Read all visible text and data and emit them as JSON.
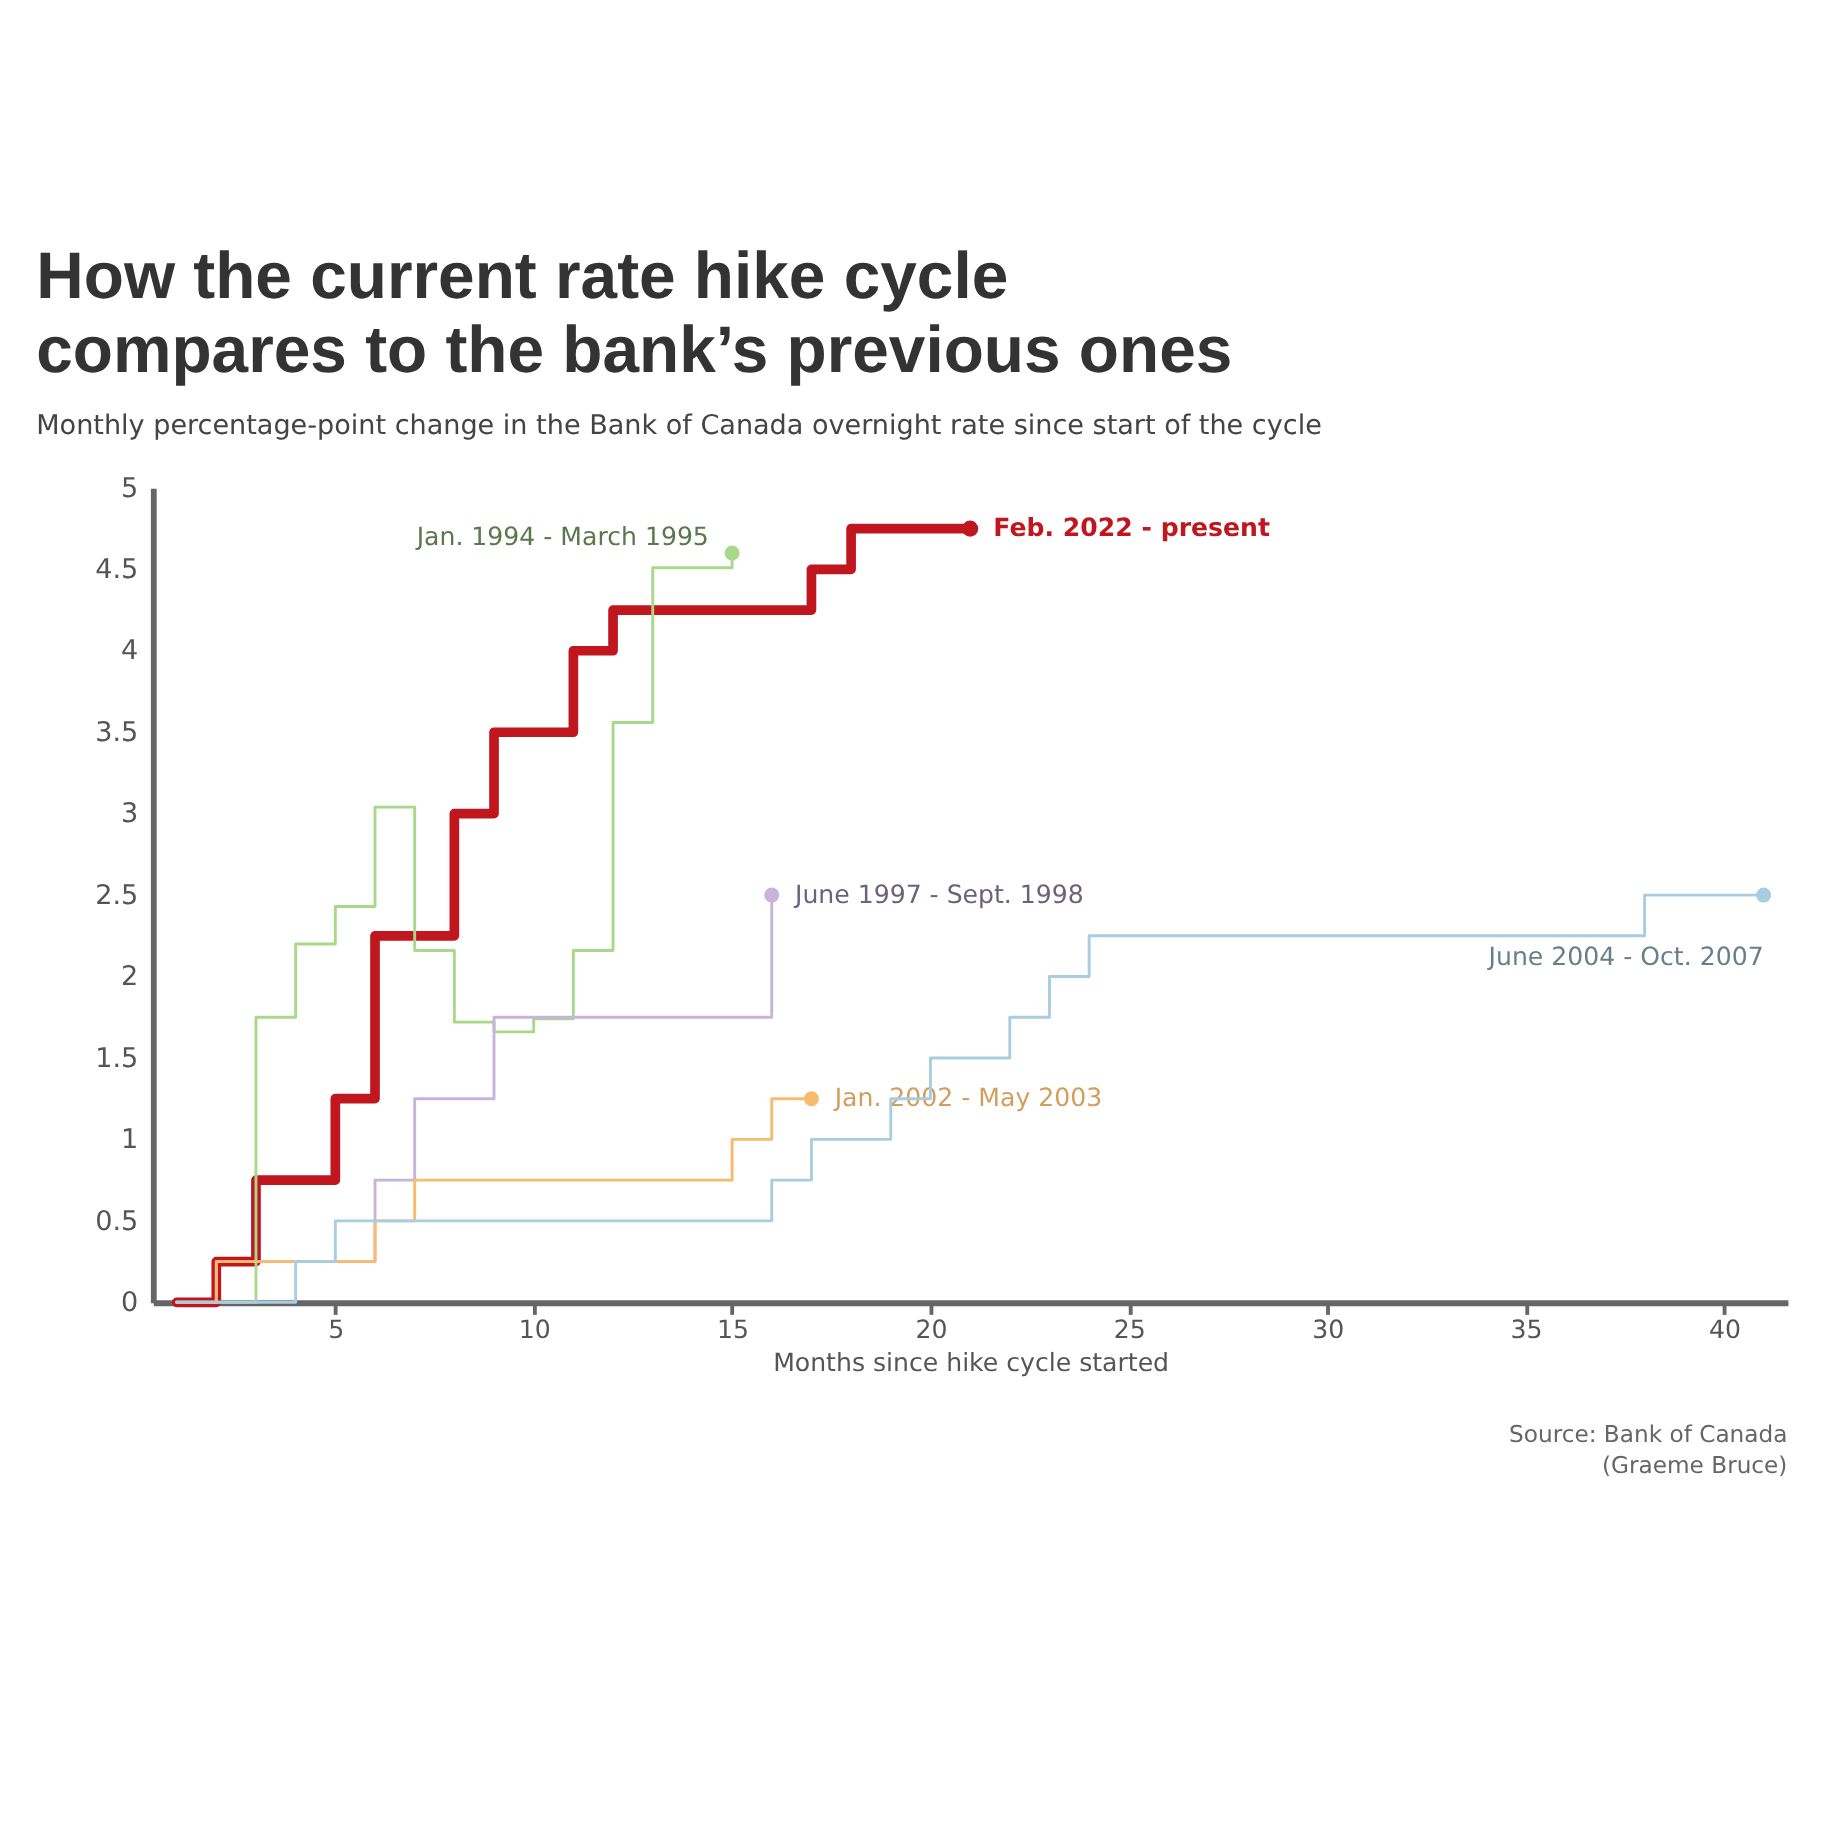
{
  "chart_data": {
    "type": "step",
    "title": [
      "How the current rate hike cycle",
      "compares to the bank’s previous ones"
    ],
    "subtitle": "Monthly percentage-point change in the Bank of Canada overnight rate since start of the cycle",
    "xlabel": "Months since hike cycle started",
    "xlim": [
      0.4,
      41.6
    ],
    "xticks": [
      5,
      10,
      15,
      20,
      25,
      30,
      35,
      40
    ],
    "ylim": [
      0,
      5
    ],
    "yticks": [
      0,
      0.5,
      1,
      1.5,
      2,
      2.5,
      3,
      3.5,
      4,
      4.5,
      5
    ],
    "grid": false,
    "series": [
      {
        "name": "Feb. 2022 - present",
        "color": "#c0161e",
        "x": [
          1,
          2,
          3,
          4,
          5,
          6,
          7,
          8,
          9,
          10,
          11,
          12,
          13,
          14,
          15,
          16,
          17,
          18,
          19,
          20,
          21
        ],
        "values": [
          0,
          0.25,
          0.75,
          0.75,
          1.25,
          2.25,
          2.25,
          3,
          3.5,
          3.5,
          4,
          4.25,
          4.25,
          4.25,
          4.25,
          4.25,
          4.5,
          4.75,
          4.75,
          4.75,
          4.75
        ]
      },
      {
        "name": "Jan. 1994 - March 1995",
        "color": "#a8d98a",
        "x": [
          1,
          2,
          3,
          4,
          5,
          6,
          7,
          8,
          9,
          10,
          11,
          12,
          13,
          14,
          15
        ],
        "values": [
          0,
          0,
          1.75,
          2.2,
          2.43,
          3.04,
          2.16,
          1.72,
          1.66,
          1.74,
          2.16,
          3.56,
          4.51,
          4.51,
          4.6
        ]
      },
      {
        "name": "June 1997 - Sept. 1998",
        "color": "#c7b3dc",
        "x": [
          1,
          2,
          3,
          4,
          5,
          6,
          7,
          8,
          9,
          10,
          11,
          12,
          13,
          14,
          15,
          16
        ],
        "values": [
          0,
          0.25,
          0.25,
          0.25,
          0.25,
          0.75,
          1.25,
          1.25,
          1.75,
          1.75,
          1.75,
          1.75,
          1.75,
          1.75,
          1.75,
          2.5
        ]
      },
      {
        "name": "Jan. 2002 - May 2003",
        "color": "#f8bb6e",
        "x": [
          1,
          2,
          3,
          4,
          5,
          6,
          7,
          8,
          9,
          10,
          11,
          12,
          13,
          14,
          15,
          16,
          17
        ],
        "values": [
          0,
          0.25,
          0.25,
          0.25,
          0.25,
          0.5,
          0.75,
          0.75,
          0.75,
          0.75,
          0.75,
          0.75,
          0.75,
          0.75,
          1.0,
          1.25,
          1.25
        ]
      },
      {
        "name": "June 2004 - Oct. 2007",
        "color": "#a9cde0",
        "x": [
          1,
          2,
          3,
          4,
          5,
          6,
          7,
          8,
          9,
          10,
          11,
          12,
          13,
          14,
          15,
          16,
          17,
          18,
          19,
          20,
          21,
          22,
          23,
          24,
          25,
          26,
          27,
          28,
          29,
          30,
          31,
          32,
          33,
          34,
          35,
          36,
          37,
          38,
          39,
          40,
          41
        ],
        "values": [
          0,
          0,
          0,
          0.25,
          0.5,
          0.5,
          0.5,
          0.5,
          0.5,
          0.5,
          0.5,
          0.5,
          0.5,
          0.5,
          0.5,
          0.75,
          1.0,
          1.0,
          1.25,
          1.5,
          1.5,
          1.75,
          2.0,
          2.25,
          2.25,
          2.25,
          2.25,
          2.25,
          2.25,
          2.25,
          2.25,
          2.25,
          2.25,
          2.25,
          2.25,
          2.25,
          2.25,
          2.5,
          2.5,
          2.5,
          2.5
        ]
      }
    ],
    "annotations": [
      "Source: Bank of Canada",
      "(Graeme Bruce)"
    ]
  }
}
